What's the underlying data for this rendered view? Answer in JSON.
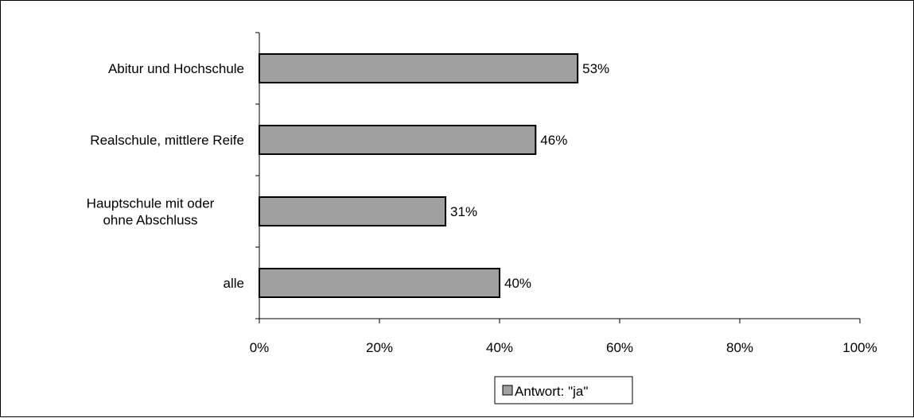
{
  "chart_data": {
    "type": "bar",
    "orientation": "horizontal",
    "categories": [
      [
        "Abitur und Hochschule"
      ],
      [
        "Realschule, mittlere Reife"
      ],
      [
        "Hauptschule mit oder",
        "ohne Abschluss"
      ],
      [
        "alle"
      ]
    ],
    "series": [
      {
        "name": "Antwort: \"ja\"",
        "values": [
          53,
          46,
          31,
          40
        ]
      }
    ],
    "data_labels": [
      "53%",
      "46%",
      "31%",
      "40%"
    ],
    "xlim": [
      0,
      100
    ],
    "x_ticks": [
      0,
      20,
      40,
      60,
      80,
      100
    ],
    "x_tick_labels": [
      "0%",
      "20%",
      "40%",
      "60%",
      "80%",
      "100%"
    ],
    "grid": false,
    "legend": "bottom-center",
    "colors": {
      "bar_fill": "#a0a0a0",
      "bar_stroke": "#000000"
    }
  }
}
